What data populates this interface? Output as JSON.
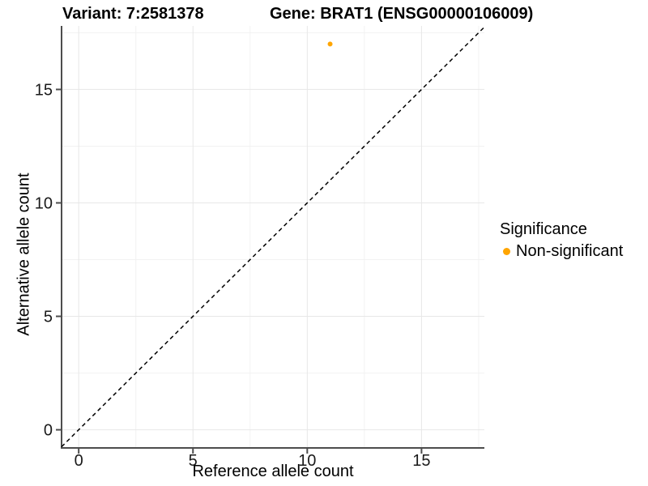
{
  "chart_data": {
    "type": "scatter",
    "title_left": "Variant: 7:2581378",
    "title_right": "Gene: BRAT1 (ENSG00000106009)",
    "xlabel": "Reference allele count",
    "ylabel": "Alternative allele count",
    "xlim": [
      -0.75,
      17.75
    ],
    "ylim": [
      -0.8,
      17.8
    ],
    "xticks": [
      0,
      5,
      10,
      15
    ],
    "yticks": [
      0,
      5,
      10,
      15
    ],
    "xminor": [
      2.5,
      7.5,
      12.5,
      17.5
    ],
    "yminor": [
      2.5,
      7.5,
      12.5,
      17.5
    ],
    "grid": "major and minor gridlines, light gray on white panel",
    "series": [
      {
        "name": "Non-significant",
        "color": "#FFA500",
        "points": [
          {
            "x": 11,
            "y": 17
          }
        ]
      }
    ],
    "reference_line": {
      "kind": "identity y = x",
      "style": "dashed",
      "color": "#000000"
    },
    "legend": {
      "position": "right",
      "title": "Significance",
      "items": [
        {
          "label": "Non-significant",
          "color": "#FFA500"
        }
      ]
    }
  },
  "style": {
    "axis_color": "#4D4D4D",
    "grid_major_color": "#E7E7E7",
    "grid_minor_color": "#F2F2F2",
    "tick_label_color": "#1A1A1A",
    "background": "#FFFFFF"
  }
}
